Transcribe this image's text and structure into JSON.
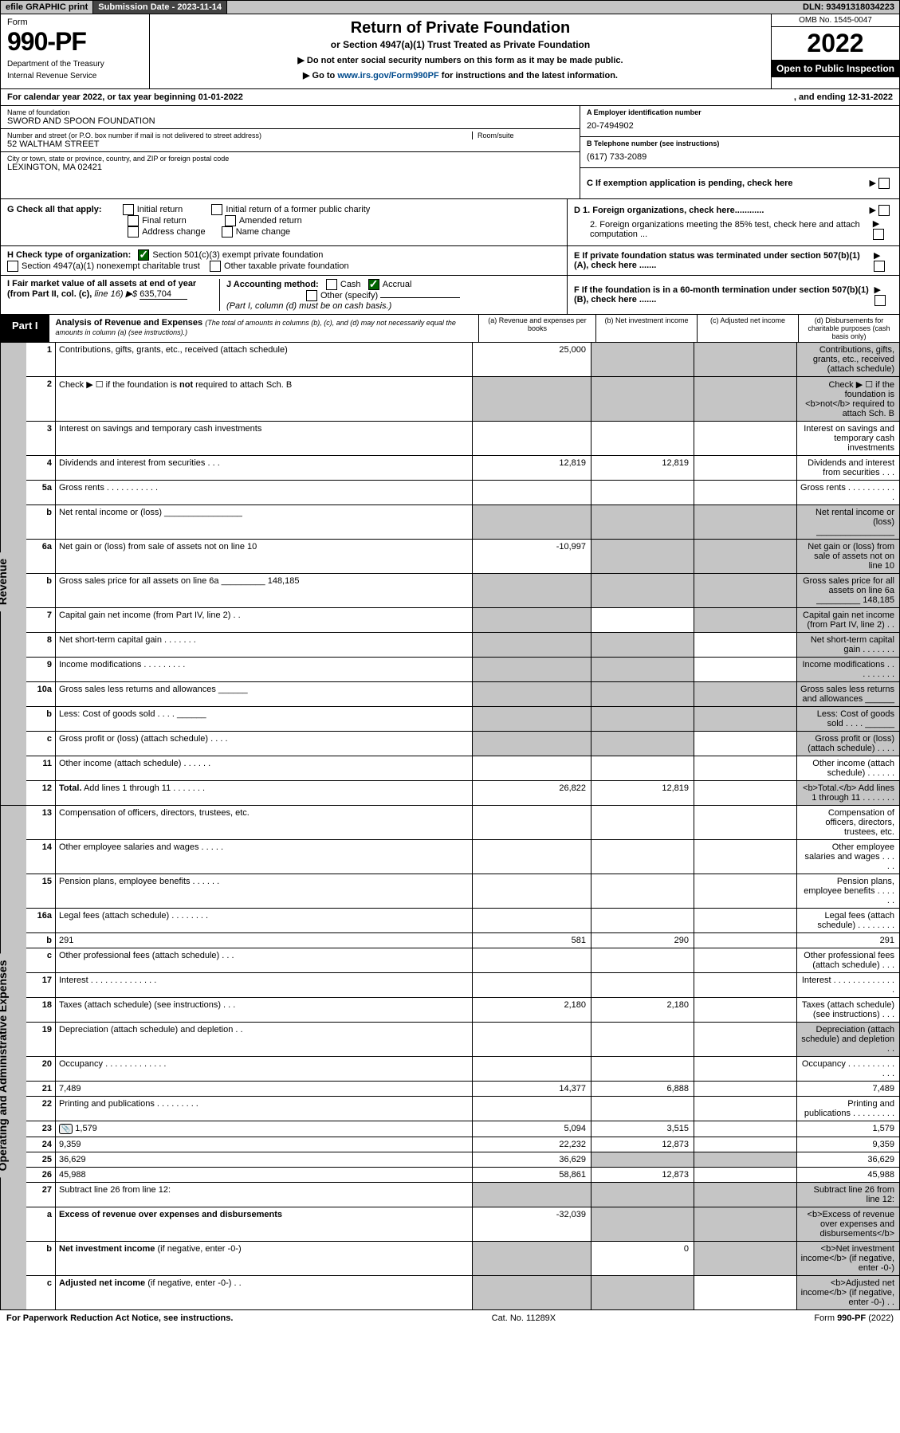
{
  "topbar": {
    "efile": "efile GRAPHIC print",
    "sublabel": "Submission Date - 2023-11-14",
    "dln": "DLN: 93491318034223"
  },
  "header": {
    "formword": "Form",
    "formnum": "990-PF",
    "dept": "Department of the Treasury",
    "irs": "Internal Revenue Service",
    "title": "Return of Private Foundation",
    "subtitle": "or Section 4947(a)(1) Trust Treated as Private Foundation",
    "note1": "▶ Do not enter social security numbers on this form as it may be made public.",
    "note2a": "▶ Go to ",
    "note2link": "www.irs.gov/Form990PF",
    "note2b": " for instructions and the latest information.",
    "omb": "OMB No. 1545-0047",
    "year": "2022",
    "open": "Open to Public Inspection"
  },
  "cal": {
    "a": "For calendar year 2022, or tax year beginning 01-01-2022",
    "b": ", and ending 12-31-2022"
  },
  "id": {
    "namelbl": "Name of foundation",
    "name": "SWORD AND SPOON FOUNDATION",
    "addrlbl": "Number and street (or P.O. box number if mail is not delivered to street address)",
    "suite": "Room/suite",
    "addr": "52 WALTHAM STREET",
    "citylbl": "City or town, state or province, country, and ZIP or foreign postal code",
    "city": "LEXINGTON, MA  02421",
    "einlbl": "A Employer identification number",
    "ein": "20-7494902",
    "tellbl": "B Telephone number (see instructions)",
    "tel": "(617) 733-2089",
    "clbl": "C If exemption application is pending, check here"
  },
  "g": {
    "lbl": "G Check all that apply:",
    "o1": "Initial return",
    "o2": "Final return",
    "o3": "Address change",
    "o4": "Initial return of a former public charity",
    "o5": "Amended return",
    "o6": "Name change"
  },
  "d": {
    "d1": "D 1. Foreign organizations, check here............",
    "d2": "2. Foreign organizations meeting the 85% test, check here and attach computation ..."
  },
  "h": {
    "lbl": "H Check type of organization:",
    "o1": "Section 501(c)(3) exempt private foundation",
    "o2": "Section 4947(a)(1) nonexempt charitable trust",
    "o3": "Other taxable private foundation"
  },
  "e": {
    "lbl": "E  If private foundation status was terminated under section 507(b)(1)(A), check here ......."
  },
  "i": {
    "lbl": "I Fair market value of all assets at end of year (from Part II, col. (c), ",
    "line": "line 16) ▶$",
    "val": "635,704"
  },
  "j": {
    "lbl": "J Accounting method:",
    "o1": "Cash",
    "o2": "Accrual",
    "o3": "Other (specify)",
    "note": "(Part I, column (d) must be on cash basis.)"
  },
  "f": {
    "lbl": "F  If the foundation is in a 60-month termination under section 507(b)(1)(B), check here ......."
  },
  "part1": {
    "tab": "Part I",
    "title": "Analysis of Revenue and Expenses ",
    "titlenote": "(The total of amounts in columns (b), (c), and (d) may not necessarily equal the amounts in column (a) (see instructions).)",
    "cola": "(a)   Revenue and expenses per books",
    "colb": "(b)   Net investment income",
    "colc": "(c)   Adjusted net income",
    "cold": "(d)   Disbursements for charitable purposes (cash basis only)"
  },
  "sides": {
    "rev": "Revenue",
    "exp": "Operating and Administrative Expenses"
  },
  "rows": [
    {
      "n": "1",
      "d": "Contributions, gifts, grants, etc., received (attach schedule)",
      "a": "25,000",
      "bGrey": true,
      "cGrey": true,
      "dGrey": true
    },
    {
      "n": "2",
      "d": "Check ▶ ☐ if the foundation is <b>not</b> required to attach Sch. B",
      "aGrey": true,
      "bGrey": true,
      "cGrey": true,
      "dGrey": true
    },
    {
      "n": "3",
      "d": "Interest on savings and temporary cash investments"
    },
    {
      "n": "4",
      "d": "Dividends and interest from securities   .   .   .",
      "a": "12,819",
      "b": "12,819"
    },
    {
      "n": "5a",
      "d": "Gross rents   .   .   .   .   .   .   .   .   .   .   ."
    },
    {
      "n": "b",
      "d": "Net rental income or (loss) ________________",
      "aGrey": true,
      "bGrey": true,
      "cGrey": true,
      "dGrey": true
    },
    {
      "n": "6a",
      "d": "Net gain or (loss) from sale of assets not on line 10",
      "a": "-10,997",
      "bGrey": true,
      "cGrey": true,
      "dGrey": true
    },
    {
      "n": "b",
      "d": "Gross sales price for all assets on line 6a _________ 148,185",
      "aGrey": true,
      "bGrey": true,
      "cGrey": true,
      "dGrey": true
    },
    {
      "n": "7",
      "d": "Capital gain net income (from Part IV, line 2)   .   .",
      "aGrey": true,
      "cGrey": true,
      "dGrey": true
    },
    {
      "n": "8",
      "d": "Net short-term capital gain  .   .   .   .   .   .   .",
      "aGrey": true,
      "bGrey": true,
      "dGrey": true
    },
    {
      "n": "9",
      "d": "Income modifications  .   .   .   .   .   .   .   .   .",
      "aGrey": true,
      "bGrey": true,
      "dGrey": true
    },
    {
      "n": "10a",
      "d": "Gross sales less returns and allowances ______",
      "aGrey": true,
      "bGrey": true,
      "cGrey": true,
      "dGrey": true
    },
    {
      "n": "b",
      "d": "Less: Cost of goods sold    .   .   .   .   ______",
      "aGrey": true,
      "bGrey": true,
      "cGrey": true,
      "dGrey": true
    },
    {
      "n": "c",
      "d": "Gross profit or (loss) (attach schedule)    .   .   .   .",
      "aGrey": true,
      "bGrey": true,
      "dGrey": true
    },
    {
      "n": "11",
      "d": "Other income (attach schedule)    .   .   .   .   .   ."
    },
    {
      "n": "12",
      "d": "<b>Total.</b> Add lines 1 through 11    .   .   .   .   .   .   .",
      "a": "26,822",
      "b": "12,819",
      "dGrey": true
    },
    {
      "n": "13",
      "d": "Compensation of officers, directors, trustees, etc."
    },
    {
      "n": "14",
      "d": "Other employee salaries and wages   .   .   .   .   ."
    },
    {
      "n": "15",
      "d": "Pension plans, employee benefits  .   .   .   .   .   ."
    },
    {
      "n": "16a",
      "d": "Legal fees (attach schedule)  .   .   .   .   .   .   .   ."
    },
    {
      "n": "b",
      "d": "291",
      "a": "581",
      "b": "290"
    },
    {
      "n": "c",
      "d": "Other professional fees (attach schedule)   .   .   ."
    },
    {
      "n": "17",
      "d": "Interest  .   .   .   .   .   .   .   .   .   .   .   .   .   ."
    },
    {
      "n": "18",
      "d": "Taxes (attach schedule) (see instructions)    .   .   .",
      "a": "2,180",
      "b": "2,180"
    },
    {
      "n": "19",
      "d": "Depreciation (attach schedule) and depletion   .   .",
      "dGrey": true
    },
    {
      "n": "20",
      "d": "Occupancy  .   .   .   .   .   .   .   .   .   .   .   .   ."
    },
    {
      "n": "21",
      "d": "7,489",
      "a": "14,377",
      "b": "6,888"
    },
    {
      "n": "22",
      "d": "Printing and publications  .   .   .   .   .   .   .   .   ."
    },
    {
      "n": "23",
      "d": "1,579",
      "a": "5,094",
      "b": "3,515",
      "icon": true
    },
    {
      "n": "24",
      "d": "9,359",
      "a": "22,232",
      "b": "12,873"
    },
    {
      "n": "25",
      "d": "36,629",
      "a": "36,629",
      "bGrey": true,
      "cGrey": true
    },
    {
      "n": "26",
      "d": "45,988",
      "a": "58,861",
      "b": "12,873"
    },
    {
      "n": "27",
      "d": "Subtract line 26 from line 12:",
      "aGrey": true,
      "bGrey": true,
      "cGrey": true,
      "dGrey": true
    },
    {
      "n": "a",
      "d": "<b>Excess of revenue over expenses and disbursements</b>",
      "a": "-32,039",
      "bGrey": true,
      "cGrey": true,
      "dGrey": true
    },
    {
      "n": "b",
      "d": "<b>Net investment income</b> (if negative, enter -0-)",
      "aGrey": true,
      "b": "0",
      "cGrey": true,
      "dGrey": true
    },
    {
      "n": "c",
      "d": "<b>Adjusted net income</b> (if negative, enter -0-)   .   .",
      "aGrey": true,
      "bGrey": true,
      "dGrey": true
    }
  ],
  "footer": {
    "a": "For Paperwork Reduction Act Notice, see instructions.",
    "b": "Cat. No. 11289X",
    "c": "Form 990-PF (2022)"
  }
}
